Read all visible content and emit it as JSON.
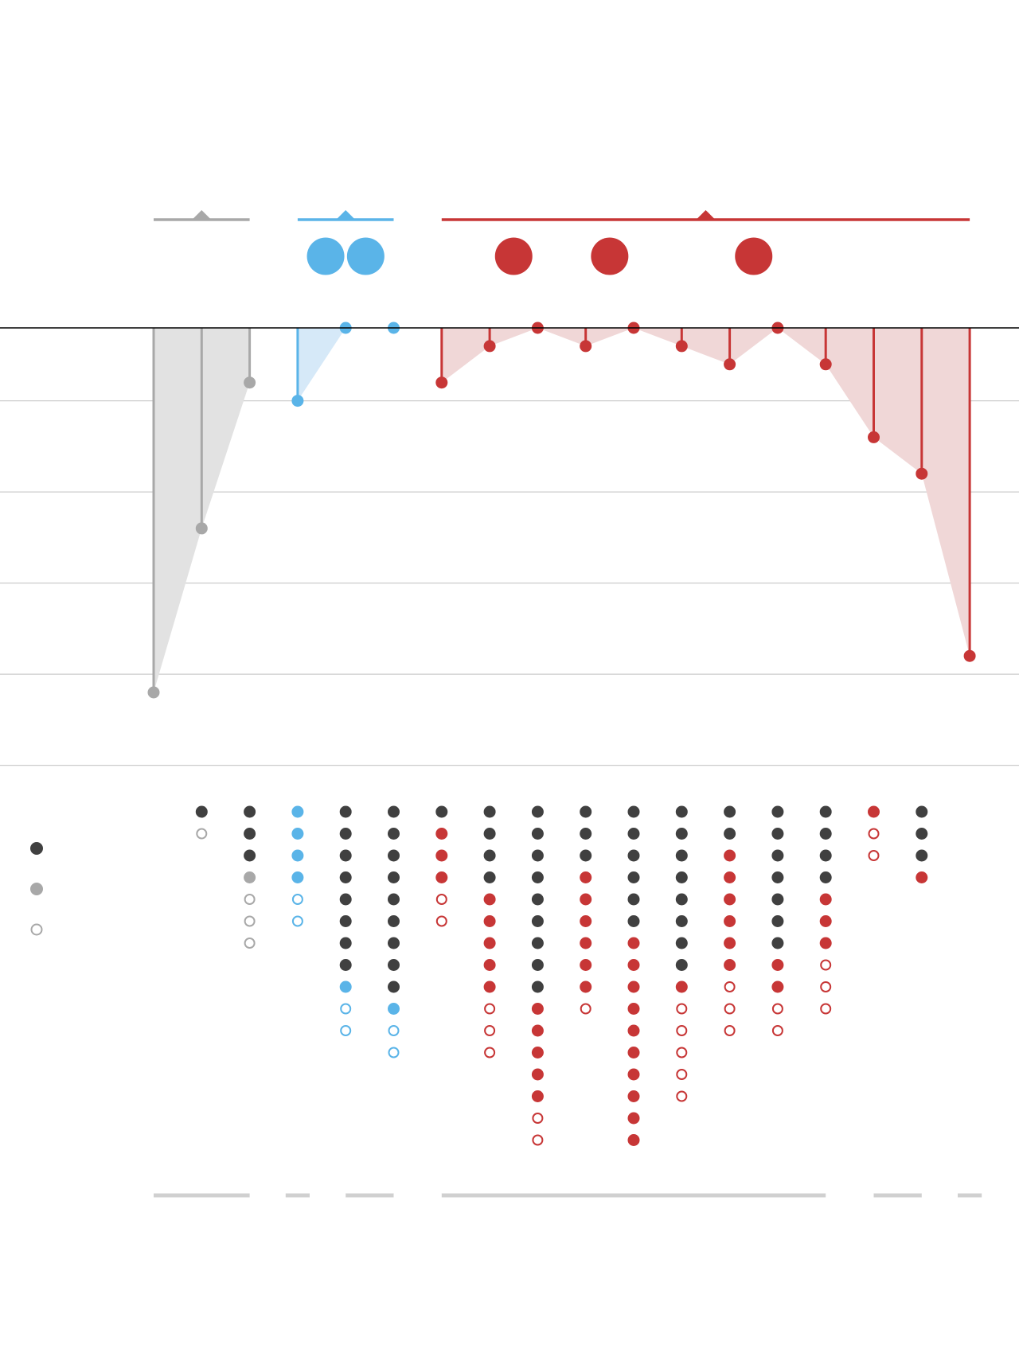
{
  "chart_data": [
    {
      "type": "lollipop",
      "title": "",
      "xlabel": "",
      "ylabel": "",
      "ylim": [
        -24,
        0
      ],
      "grid": true,
      "baseline": 0,
      "gridlines": [
        0,
        -4,
        -9,
        -14,
        -19,
        -24
      ],
      "groups": [
        {
          "color": "#a8a8a8",
          "from": 0,
          "to": 2,
          "big_dots": []
        },
        {
          "color": "#5ab4e8",
          "from": 3,
          "to": 5,
          "big_dots": [
            4,
            5
          ]
        },
        {
          "color": "#c73636",
          "from": 6,
          "to": 17,
          "big_dots": [
            8,
            10,
            13
          ]
        }
      ],
      "values": [
        -20,
        -11,
        -3,
        -4,
        0,
        0,
        -3,
        -1,
        0,
        -1,
        0,
        -1,
        -2,
        0,
        -2,
        -6,
        -8,
        -18
      ]
    },
    {
      "type": "dot-matrix",
      "title": "",
      "legend": [
        {
          "symbol": "filled-dark",
          "label": ""
        },
        {
          "symbol": "filled-grey",
          "label": ""
        },
        {
          "symbol": "hollow",
          "label": ""
        }
      ],
      "colors": {
        "dark": "#404040",
        "grey": "#a8a8a8",
        "blue": "#5ab4e8",
        "red": "#c73636"
      },
      "columns": [
        {
          "dots": []
        },
        {
          "dots": [
            "Kd",
            "Go"
          ]
        },
        {
          "dots": [
            "Kd",
            "Kd",
            "Kd",
            "Gf",
            "Go",
            "Go",
            "Go"
          ]
        },
        {
          "dots": [
            "Bf",
            "Bf",
            "Bf",
            "Bf",
            "Bo",
            "Bo"
          ]
        },
        {
          "dots": [
            "Kd",
            "Kd",
            "Kd",
            "Kd",
            "Kd",
            "Kd",
            "Kd",
            "Kd",
            "Bf",
            "Bo",
            "Bo"
          ]
        },
        {
          "dots": [
            "Kd",
            "Kd",
            "Kd",
            "Kd",
            "Kd",
            "Kd",
            "Kd",
            "Kd",
            "Kd",
            "Bf",
            "Bo",
            "Bo"
          ]
        },
        {
          "dots": [
            "Kd",
            "Rf",
            "Rf",
            "Rf",
            "Ro",
            "Ro"
          ]
        },
        {
          "dots": [
            "Kd",
            "Kd",
            "Kd",
            "Kd",
            "Rf",
            "Rf",
            "Rf",
            "Rf",
            "Rf",
            "Ro",
            "Ro",
            "Ro"
          ]
        },
        {
          "dots": [
            "Kd",
            "Kd",
            "Kd",
            "Kd",
            "Kd",
            "Kd",
            "Kd",
            "Kd",
            "Kd",
            "Rf",
            "Rf",
            "Rf",
            "Rf",
            "Rf",
            "Ro",
            "Ro"
          ]
        },
        {
          "dots": [
            "Kd",
            "Kd",
            "Kd",
            "Rf",
            "Rf",
            "Rf",
            "Rf",
            "Rf",
            "Rf",
            "Ro"
          ]
        },
        {
          "dots": [
            "Kd",
            "Kd",
            "Kd",
            "Kd",
            "Kd",
            "Kd",
            "Rf",
            "Rf",
            "Rf",
            "Rf",
            "Rf",
            "Rf",
            "Rf",
            "Rf",
            "Rf",
            "Rf"
          ]
        },
        {
          "dots": [
            "Kd",
            "Kd",
            "Kd",
            "Kd",
            "Kd",
            "Kd",
            "Kd",
            "Kd",
            "Rf",
            "Ro",
            "Ro",
            "Ro",
            "Ro",
            "Ro"
          ]
        },
        {
          "dots": [
            "Kd",
            "Kd",
            "Rf",
            "Rf",
            "Rf",
            "Rf",
            "Rf",
            "Rf",
            "Ro",
            "Ro",
            "Ro"
          ]
        },
        {
          "dots": [
            "Kd",
            "Kd",
            "Kd",
            "Kd",
            "Kd",
            "Kd",
            "Kd",
            "Rf",
            "Rf",
            "Ro",
            "Ro"
          ]
        },
        {
          "dots": [
            "Kd",
            "Kd",
            "Kd",
            "Kd",
            "Rf",
            "Rf",
            "Rf",
            "Ro",
            "Ro",
            "Ro"
          ]
        },
        {
          "dots": [
            "Rf",
            "Ro",
            "Ro"
          ]
        },
        {
          "dots": [
            "Kd",
            "Kd",
            "Kd",
            "Rf"
          ]
        },
        {
          "dots": []
        }
      ]
    }
  ]
}
